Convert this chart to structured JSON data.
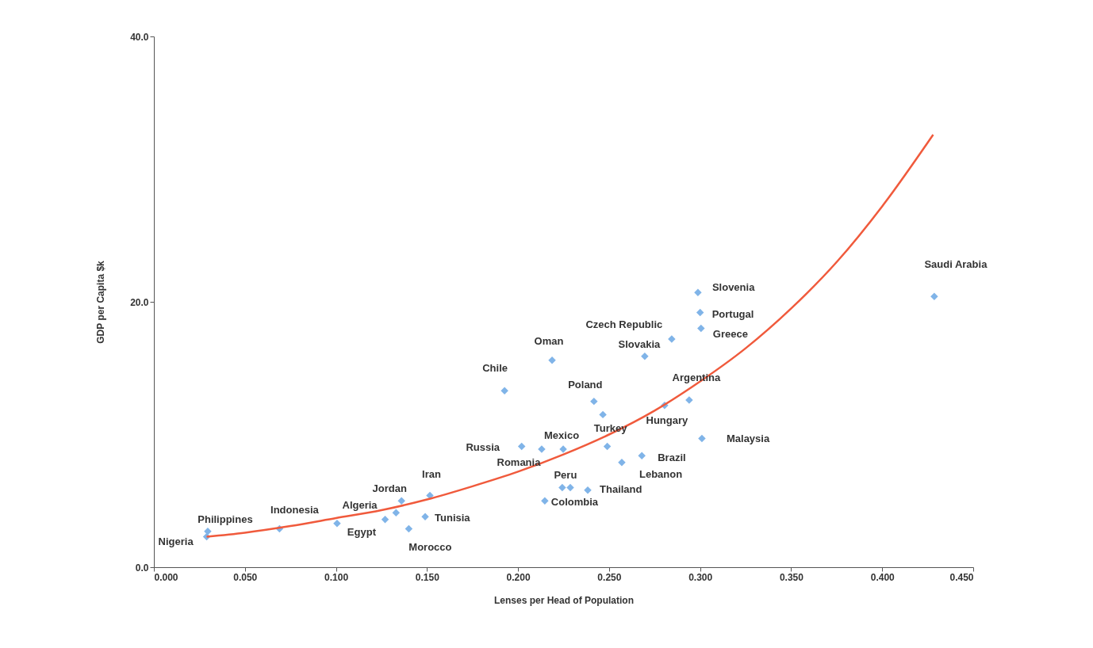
{
  "chart_data": {
    "type": "scatter",
    "xlabel": "Lenses per Head of Population",
    "ylabel": "GDP per Capita $k",
    "xlim": [
      0,
      0.45
    ],
    "ylim": [
      0,
      40
    ],
    "xticks": [
      {
        "value": 0,
        "label": "0.000"
      },
      {
        "value": 0.05,
        "label": "0.050"
      },
      {
        "value": 0.1,
        "label": "0.100"
      },
      {
        "value": 0.15,
        "label": "0.150"
      },
      {
        "value": 0.2,
        "label": "0.200"
      },
      {
        "value": 0.25,
        "label": "0.250"
      },
      {
        "value": 0.3,
        "label": "0.300"
      },
      {
        "value": 0.35,
        "label": "0.350"
      },
      {
        "value": 0.4,
        "label": "0.400"
      },
      {
        "value": 0.45,
        "label": "0.450"
      }
    ],
    "yticks": [
      {
        "value": 0,
        "label": "0.0"
      },
      {
        "value": 20,
        "label": "20.0"
      },
      {
        "value": 40,
        "label": "40.0"
      }
    ],
    "grid": false,
    "series": [
      {
        "marker": "diamond",
        "color": "#80b4e8",
        "x": [
          0.0296,
          0.029,
          0.069,
          0.1006,
          0.127,
          0.133,
          0.136,
          0.1516,
          0.149,
          0.14,
          0.1926,
          0.2187,
          0.202,
          0.213,
          0.2248,
          0.2417,
          0.2466,
          0.249,
          0.2805,
          0.294,
          0.301,
          0.268,
          0.257,
          0.2243,
          0.2287,
          0.2383,
          0.2147,
          0.2696,
          0.2844,
          0.2988,
          0.3,
          0.3005,
          0.4286
        ],
        "values": [
          2.7,
          2.3,
          2.9,
          3.3,
          3.6,
          4.1,
          5.0,
          5.4,
          3.8,
          2.9,
          13.3,
          15.6,
          9.1,
          8.9,
          8.9,
          12.5,
          11.5,
          9.1,
          12.2,
          12.6,
          9.7,
          8.4,
          7.9,
          6.0,
          6.0,
          5.8,
          5.0,
          15.9,
          17.2,
          20.7,
          19.2,
          18.0,
          20.4
        ]
      },
      {
        "type": "line",
        "color": "#f05a3c",
        "x": [
          0.029,
          0.05,
          0.075,
          0.1,
          0.125,
          0.15,
          0.175,
          0.2,
          0.225,
          0.25,
          0.275,
          0.3,
          0.325,
          0.35,
          0.375,
          0.4,
          0.428
        ],
        "values": [
          2.3,
          2.6,
          3.1,
          3.7,
          4.3,
          5.1,
          6.1,
          7.2,
          8.5,
          10.0,
          11.8,
          14.0,
          16.5,
          19.5,
          23.0,
          27.2,
          32.6
        ]
      }
    ],
    "annotations": [
      {
        "text": "Philippines",
        "x": 0.0296,
        "y": 2.7
      },
      {
        "text": "Nigeria",
        "x": 0.029,
        "y": 2.3
      },
      {
        "text": "Indonesia",
        "x": 0.069,
        "y": 2.9
      },
      {
        "text": "Egypt",
        "x": 0.1006,
        "y": 3.3
      },
      {
        "text": "Algeria",
        "x": 0.127,
        "y": 3.6
      },
      {
        "text": "Jordan",
        "x": 0.136,
        "y": 5.0
      },
      {
        "text": "Iran",
        "x": 0.1516,
        "y": 5.4
      },
      {
        "text": "Tunisia",
        "x": 0.149,
        "y": 3.8
      },
      {
        "text": "Morocco",
        "x": 0.14,
        "y": 2.9
      },
      {
        "text": "Chile",
        "x": 0.1926,
        "y": 13.3
      },
      {
        "text": "Oman",
        "x": 0.2187,
        "y": 15.6
      },
      {
        "text": "Russia",
        "x": 0.202,
        "y": 9.1
      },
      {
        "text": "Romania",
        "x": 0.213,
        "y": 8.9
      },
      {
        "text": "Mexico",
        "x": 0.2248,
        "y": 8.9
      },
      {
        "text": "Poland",
        "x": 0.2417,
        "y": 12.5
      },
      {
        "text": "Turkey",
        "x": 0.249,
        "y": 9.1
      },
      {
        "text": "Hungary",
        "x": 0.2805,
        "y": 12.2
      },
      {
        "text": "Argentina",
        "x": 0.294,
        "y": 12.6
      },
      {
        "text": "Malaysia",
        "x": 0.301,
        "y": 9.7
      },
      {
        "text": "Brazil",
        "x": 0.268,
        "y": 8.4
      },
      {
        "text": "Lebanon",
        "x": 0.257,
        "y": 7.9
      },
      {
        "text": "Peru",
        "x": 0.2243,
        "y": 6.0
      },
      {
        "text": "Thailand",
        "x": 0.2383,
        "y": 5.8
      },
      {
        "text": "Colombia",
        "x": 0.2147,
        "y": 5.0
      },
      {
        "text": "Slovakia",
        "x": 0.2696,
        "y": 15.9
      },
      {
        "text": "Czech Republic",
        "x": 0.2844,
        "y": 17.2
      },
      {
        "text": "Slovenia",
        "x": 0.2988,
        "y": 20.7
      },
      {
        "text": "Portugal",
        "x": 0.3,
        "y": 19.2
      },
      {
        "text": "Greece",
        "x": 0.3005,
        "y": 18.0
      },
      {
        "text": "Saudi Arabia",
        "x": 0.4286,
        "y": 20.4
      }
    ]
  }
}
